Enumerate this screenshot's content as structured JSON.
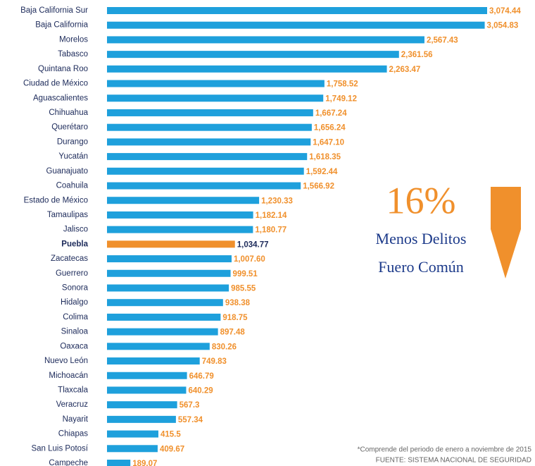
{
  "chart_data": {
    "type": "bar",
    "orientation": "horizontal",
    "categories": [
      "Baja California Sur",
      "Baja California",
      "Morelos",
      "Tabasco",
      "Quintana Roo",
      "Ciudad de México",
      "Aguascalientes",
      "Chihuahua",
      "Querétaro",
      "Durango",
      "Yucatán",
      "Guanajuato",
      "Coahuila",
      "Estado de México",
      "Tamaulipas",
      "Jalisco",
      "Puebla",
      "Zacatecas",
      "Guerrero",
      "Sonora",
      "Hidalgo",
      "Colima",
      "Sinaloa",
      "Oaxaca",
      "Nuevo León",
      "Michoacán",
      "Tlaxcala",
      "Veracruz",
      "Nayarit",
      "Chiapas",
      "San Luis Potosí",
      "Campeche"
    ],
    "values": [
      3074.44,
      3054.83,
      2567.43,
      2361.56,
      2263.47,
      1758.52,
      1749.12,
      1667.24,
      1656.24,
      1647.1,
      1618.35,
      1592.44,
      1566.92,
      1230.33,
      1182.14,
      1180.77,
      1034.77,
      1007.6,
      999.51,
      985.55,
      938.38,
      918.75,
      897.48,
      830.26,
      749.83,
      646.79,
      640.29,
      567.3,
      557.34,
      415.5,
      409.67,
      189.07
    ],
    "value_labels": [
      "3,074.44",
      "3,054.83",
      "2,567.43",
      "2,361.56",
      "2,263.47",
      "1,758.52",
      "1,749.12",
      "1,667.24",
      "1,656.24",
      "1,647.10",
      "1,618.35",
      "1,592.44",
      "1,566.92",
      "1,230.33",
      "1,182.14",
      "1,180.77",
      "1,034.77",
      "1,007.60",
      "999.51",
      "985.55",
      "938.38",
      "918.75",
      "897.48",
      "830.26",
      "749.83",
      "646.79",
      "640.29",
      "567.3",
      "557.34",
      "415.5",
      "409.67",
      "189.07"
    ],
    "color": "#1ea0dc",
    "label_color": "#f0902c",
    "highlight": {
      "index": 16,
      "color": "#f0902c",
      "label_color": "#1c2a5a"
    },
    "annotations": {
      "percent": "16%",
      "line1": "Menos Delitos",
      "line2": "Fuero Común"
    },
    "footnote": "*Comprende del periodo de enero a noviembre de 2015",
    "source": "FUENTE: SISTEMA NACIONAL DE SEGURIDAD"
  }
}
